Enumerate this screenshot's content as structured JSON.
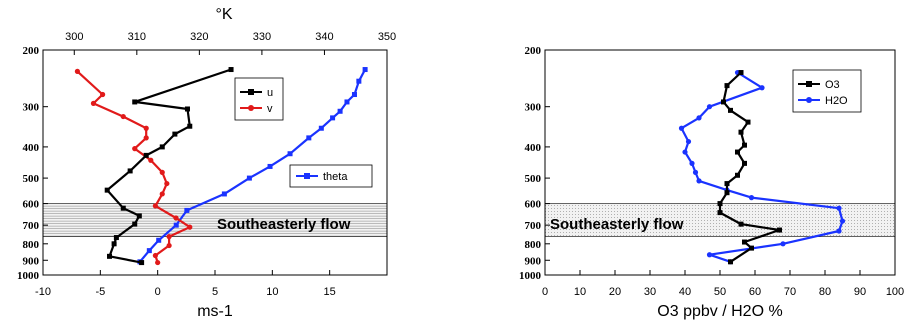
{
  "chart_data": [
    {
      "type": "line",
      "xlabel": "ms-1",
      "x2label": "°K",
      "xlim": [
        -10,
        20
      ],
      "xticks": [
        -10,
        -5,
        0,
        5,
        10,
        15
      ],
      "x2lim": [
        295,
        350
      ],
      "x2ticks": [
        300,
        310,
        320,
        330,
        340,
        350
      ],
      "ylim": [
        200,
        1000
      ],
      "yticks": [
        200,
        300,
        400,
        500,
        600,
        700,
        800,
        900,
        1000
      ],
      "yticks_labeled": [
        200,
        300,
        400,
        500,
        600,
        700,
        800,
        900,
        1000
      ],
      "y_scale": "log",
      "legend_position": "upper-right",
      "band": {
        "from": 600,
        "to": 760,
        "label": "Southeasterly flow"
      },
      "series": [
        {
          "name": "u",
          "axis": "x",
          "color": "#000000",
          "x": [
            6.4,
            -2.0,
            2.6,
            2.8,
            1.5,
            0.4,
            -1.0,
            -2.4,
            -4.4,
            -3.0,
            -1.6,
            -2.0,
            -3.6,
            -3.8,
            -4.2,
            -1.4
          ],
          "y": [
            230,
            290,
            305,
            345,
            365,
            400,
            425,
            475,
            545,
            620,
            655,
            695,
            765,
            800,
            875,
            915
          ]
        },
        {
          "name": "v",
          "axis": "x",
          "color": "#e11a1a",
          "x": [
            -7.0,
            -4.8,
            -5.6,
            -3.0,
            -1.0,
            -1.0,
            -2.0,
            -0.6,
            0.4,
            0.8,
            0.4,
            -0.2,
            1.6,
            2.8,
            1.0,
            1.0,
            -0.2,
            0.0
          ],
          "y": [
            233,
            275,
            293,
            322,
            350,
            375,
            405,
            440,
            480,
            520,
            560,
            610,
            665,
            710,
            760,
            810,
            870,
            915
          ]
        },
        {
          "name": "theta",
          "axis": "x2",
          "color": "#1a33ff",
          "x": [
            346.5,
            345.5,
            344.8,
            343.6,
            342.5,
            341.3,
            339.5,
            337.5,
            334.5,
            331.3,
            328,
            324,
            318,
            316.3,
            313.5,
            312,
            310.5
          ],
          "y": [
            230,
            250,
            275,
            290,
            310,
            325,
            350,
            375,
            420,
            460,
            500,
            560,
            630,
            700,
            780,
            840,
            910
          ]
        }
      ]
    },
    {
      "type": "line",
      "xlabel": "O3 ppbv / H2O %",
      "xlim": [
        0,
        100
      ],
      "xticks": [
        0,
        10,
        20,
        30,
        40,
        50,
        60,
        70,
        80,
        90,
        100
      ],
      "ylim": [
        200,
        1000
      ],
      "yticks": [
        200,
        300,
        400,
        500,
        600,
        700,
        800,
        900,
        1000
      ],
      "yticks_labeled": [
        200,
        300,
        400,
        500,
        600,
        700,
        800,
        900,
        1000
      ],
      "y_scale": "log",
      "legend_position": "upper-right",
      "band": {
        "from": 600,
        "to": 760,
        "label": "Southeasterly flow"
      },
      "series": [
        {
          "name": "O3",
          "color": "#000000",
          "x": [
            56,
            52,
            51,
            53,
            58,
            56,
            57,
            55,
            57,
            55,
            52,
            52,
            50,
            50,
            56,
            67,
            57,
            59,
            53
          ],
          "y": [
            235,
            258,
            290,
            308,
            335,
            360,
            395,
            415,
            450,
            490,
            520,
            555,
            600,
            640,
            695,
            725,
            790,
            825,
            910
          ]
        },
        {
          "name": "H2O",
          "color": "#1a33ff",
          "x": [
            55,
            62,
            47,
            44,
            39,
            41,
            40,
            42,
            43,
            44,
            52,
            59,
            84,
            85,
            84,
            68,
            47,
            53
          ],
          "y": [
            235,
            262,
            300,
            325,
            350,
            385,
            415,
            450,
            480,
            510,
            545,
            575,
            620,
            680,
            730,
            800,
            865,
            910
          ]
        }
      ]
    }
  ]
}
